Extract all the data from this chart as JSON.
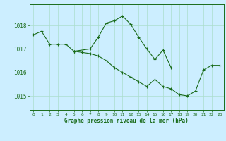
{
  "title": "Graphe pression niveau de la mer (hPa)",
  "background_color": "#cceeff",
  "grid_color": "#aaddcc",
  "line_color": "#1a6b1a",
  "xlim": [
    -0.5,
    23.5
  ],
  "ylim": [
    1014.4,
    1018.9
  ],
  "yticks": [
    1015,
    1016,
    1017,
    1018
  ],
  "xticks": [
    0,
    1,
    2,
    3,
    4,
    5,
    6,
    7,
    8,
    9,
    10,
    11,
    12,
    13,
    14,
    15,
    16,
    17,
    18,
    19,
    20,
    21,
    22,
    23
  ],
  "s1x": [
    0,
    1,
    2,
    3,
    4,
    5
  ],
  "s1y": [
    1017.6,
    1017.75,
    1017.2,
    1017.2,
    1017.2,
    1016.9
  ],
  "s2x": [
    5,
    7,
    8,
    9,
    10,
    11,
    12,
    13,
    14,
    15,
    16,
    17
  ],
  "s2y": [
    1016.9,
    1017.0,
    1017.5,
    1018.1,
    1018.2,
    1018.4,
    1018.05,
    1017.5,
    1017.0,
    1016.55,
    1016.95,
    1016.2
  ],
  "s3x": [
    5,
    6,
    7,
    8,
    9,
    10,
    11,
    12,
    13,
    14,
    15,
    16,
    17,
    18,
    19,
    20,
    21,
    22,
    23
  ],
  "s3y": [
    1016.9,
    1016.85,
    1016.8,
    1016.7,
    1016.5,
    1016.2,
    1016.0,
    1015.8,
    1015.6,
    1015.4,
    1015.7,
    1015.4,
    1015.3,
    1015.05,
    1015.0,
    1015.2,
    1016.1,
    1016.3,
    1016.3
  ],
  "lw": 0.8,
  "ms": 3.0,
  "tick_fontsize": 4.5,
  "xlabel_fontsize": 5.5
}
